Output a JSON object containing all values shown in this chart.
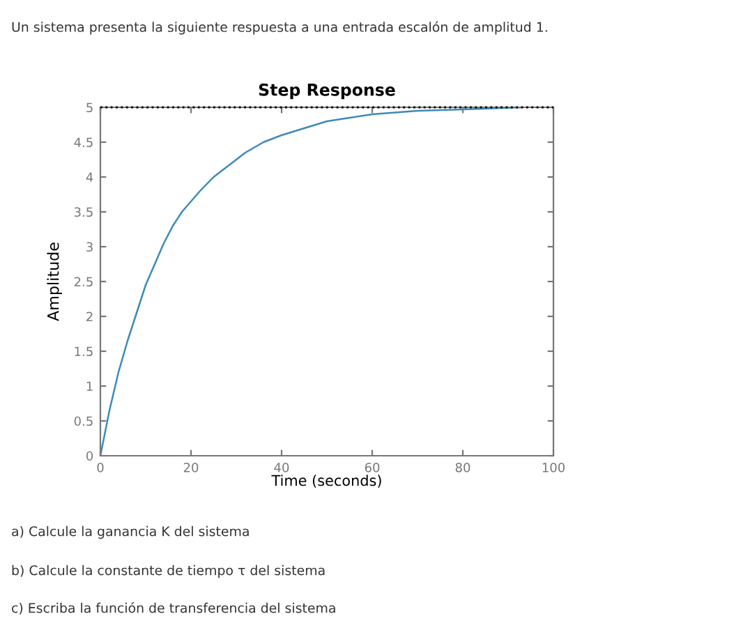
{
  "chart_data": {
    "type": "line",
    "title": "Step Response",
    "xlabel": "Time (seconds)",
    "ylabel": "Amplitude",
    "x": [
      0,
      2,
      4,
      6,
      8,
      10,
      12,
      14,
      16,
      18,
      20,
      22,
      25,
      28,
      32,
      36,
      40,
      45,
      50,
      55,
      60,
      70,
      80,
      93
    ],
    "series": [
      {
        "color": "#3d8ab8",
        "values": [
          0,
          0.65,
          1.2,
          1.65,
          2.05,
          2.45,
          2.75,
          3.05,
          3.3,
          3.5,
          3.65,
          3.8,
          4.0,
          4.15,
          4.35,
          4.5,
          4.6,
          4.7,
          4.8,
          4.85,
          4.9,
          4.95,
          4.97,
          5.0
        ]
      }
    ],
    "xlim": [
      0,
      100
    ],
    "xticks": [
      0,
      20,
      40,
      60,
      80,
      100
    ],
    "ylim": [
      0,
      5
    ],
    "yticks": [
      0,
      0.5,
      1,
      1.5,
      2,
      2.5,
      3,
      3.5,
      4,
      4.5,
      5
    ],
    "ref_lines": [
      {
        "axis": "y",
        "value": 5,
        "color": "#000000",
        "line_style": "dotted"
      }
    ],
    "grid": false,
    "marker": "none",
    "line_style": "solid",
    "annotations": [
      "Un sistema presenta la siguiente respuesta a una entrada escalón de amplitud 1.",
      "a) Calcule la ganancia K del sistema",
      "b) Calcule la constante de tiempo τ del sistema",
      "c) Escriba la función de transferencia del sistema"
    ]
  }
}
